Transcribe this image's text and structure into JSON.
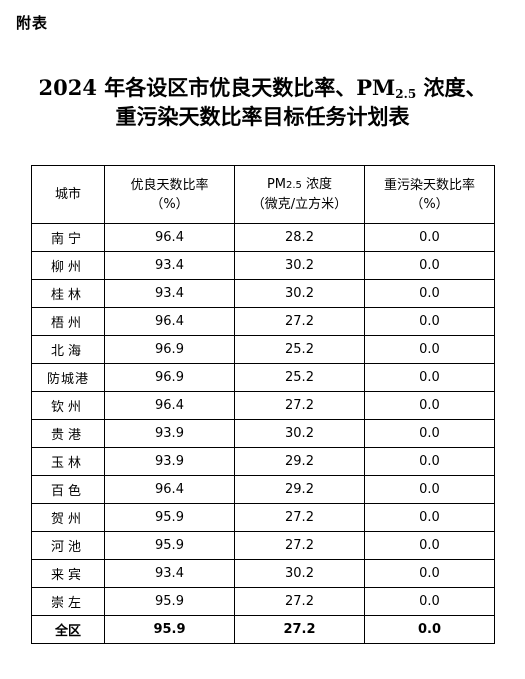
{
  "appendix_label": "附表",
  "title": {
    "line1_pre": "2024 年各设区市优良天数比率、PM",
    "line1_sub": "2.5",
    "line1_post": " 浓度、",
    "line2": "重污染天数比率目标任务计划表"
  },
  "table": {
    "headers": {
      "city": "城市",
      "good_days": "优良天数比率",
      "good_days_unit": "（%）",
      "pm_pre": "PM",
      "pm_sub": "2.5",
      "pm_post": " 浓度",
      "pm_unit": "（微克/立方米）",
      "heavy": "重污染天数比率",
      "heavy_unit": "（%）"
    },
    "rows": [
      {
        "city": "南宁",
        "good": "96.4",
        "pm": "28.2",
        "heavy": "0.0"
      },
      {
        "city": "柳州",
        "good": "93.4",
        "pm": "30.2",
        "heavy": "0.0"
      },
      {
        "city": "桂林",
        "good": "93.4",
        "pm": "30.2",
        "heavy": "0.0"
      },
      {
        "city": "梧州",
        "good": "96.4",
        "pm": "27.2",
        "heavy": "0.0"
      },
      {
        "city": "北海",
        "good": "96.9",
        "pm": "25.2",
        "heavy": "0.0"
      },
      {
        "city": "防城港",
        "good": "96.9",
        "pm": "25.2",
        "heavy": "0.0"
      },
      {
        "city": "钦州",
        "good": "96.4",
        "pm": "27.2",
        "heavy": "0.0"
      },
      {
        "city": "贵港",
        "good": "93.9",
        "pm": "30.2",
        "heavy": "0.0"
      },
      {
        "city": "玉林",
        "good": "93.9",
        "pm": "29.2",
        "heavy": "0.0"
      },
      {
        "city": "百色",
        "good": "96.4",
        "pm": "29.2",
        "heavy": "0.0"
      },
      {
        "city": "贺州",
        "good": "95.9",
        "pm": "27.2",
        "heavy": "0.0"
      },
      {
        "city": "河池",
        "good": "95.9",
        "pm": "27.2",
        "heavy": "0.0"
      },
      {
        "city": "来宾",
        "good": "93.4",
        "pm": "30.2",
        "heavy": "0.0"
      },
      {
        "city": "崇左",
        "good": "95.9",
        "pm": "27.2",
        "heavy": "0.0"
      }
    ],
    "total": {
      "city": "全区",
      "good": "95.9",
      "pm": "27.2",
      "heavy": "0.0"
    }
  }
}
